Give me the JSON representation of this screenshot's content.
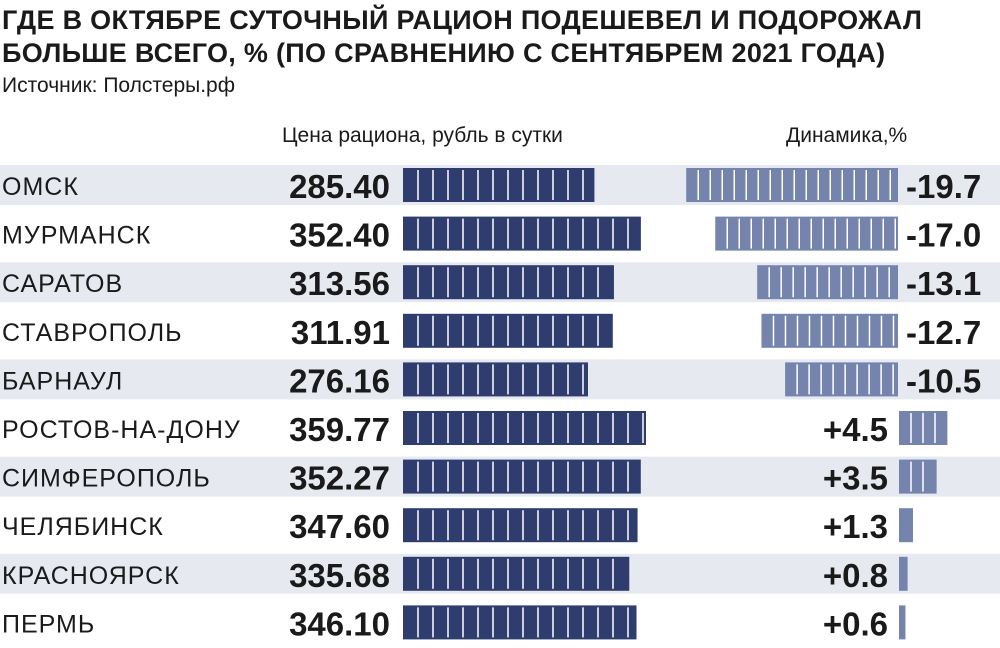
{
  "title_line1": "ГДЕ В ОКТЯБРЕ СУТОЧНЫЙ РАЦИОН ПОДЕШЕВЕЛ И ПОДОРОЖАЛ",
  "title_line2": "БОЛЬШЕ ВСЕГО, % (ПО СРАВНЕНИЮ С СЕНТЯБРЕМ 2021 ГОДА)",
  "source": "Источник: Полстеры.рф",
  "colors": {
    "price_bar": "#2e3d6e",
    "change_bar": "#7484ad",
    "row_band": "#e6e9f0",
    "bar_divider": "#ffffff"
  },
  "chart_data": {
    "type": "bar",
    "categories": [
      "ОМСК",
      "МУРМАНСК",
      "САРАТОВ",
      "СТАВРОПОЛЬ",
      "БАРНАУЛ",
      "РОСТОВ-НА-ДОНУ",
      "СИМФЕРОПОЛЬ",
      "ЧЕЛЯБИНСК",
      "КРАСНОЯРСК",
      "ПЕРМЬ"
    ],
    "series": [
      {
        "name": "Цена рациона, рубль в сутки",
        "values": [
          285.4,
          352.4,
          313.56,
          311.91,
          276.16,
          359.77,
          352.27,
          347.6,
          335.68,
          346.1
        ],
        "labels": [
          "285.40",
          "352.40",
          "313.56",
          "311.91",
          "276.16",
          "359.77",
          "352.27",
          "347.60",
          "335.68",
          "346.10"
        ]
      },
      {
        "name": "Динамика,%",
        "values": [
          -19.7,
          -17.0,
          -13.1,
          -12.7,
          -10.5,
          4.5,
          3.5,
          1.3,
          0.8,
          0.6
        ],
        "labels": [
          "-19.7",
          "-17.0",
          "-13.1",
          "-12.7",
          "-10.5",
          "+4.5",
          "+3.5",
          "+1.3",
          "+0.8",
          "+0.6"
        ]
      }
    ],
    "banded_rows": true,
    "legend": "none"
  }
}
